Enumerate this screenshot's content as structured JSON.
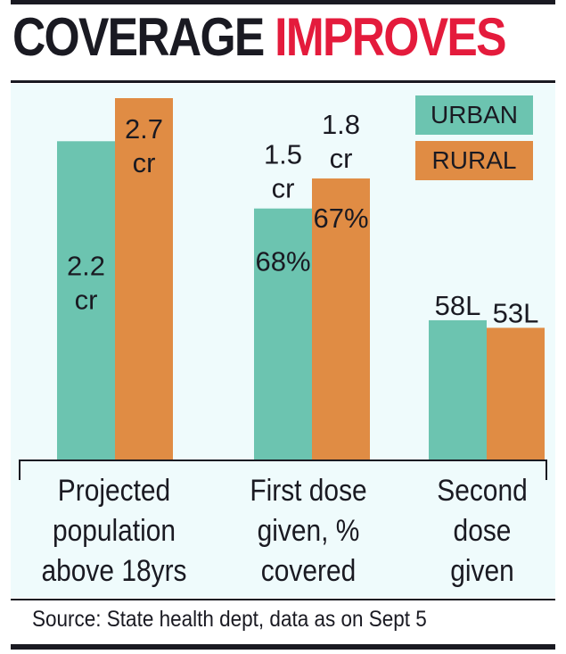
{
  "title": {
    "part1": "COVERAGE",
    "part2": "IMPROVES"
  },
  "legend": {
    "urban": "URBAN",
    "rural": "RURAL"
  },
  "source": "Source: State health dept, data as on Sept 5",
  "colors": {
    "urban": "#6cc4b0",
    "rural": "#e08c44",
    "title_accent": "#e41b3c",
    "background": "#effbfc"
  },
  "chart_data": {
    "type": "bar",
    "title": "COVERAGE IMPROVES",
    "categories": [
      "Projected population above 18yrs",
      "First dose given, % covered",
      "Second dose given"
    ],
    "series": [
      {
        "name": "URBAN",
        "values_crore": [
          2.2,
          1.5,
          0.58
        ],
        "labels": [
          "2.2 cr",
          "1.5 cr",
          "58L"
        ],
        "percent_labels": [
          null,
          "68%",
          null
        ]
      },
      {
        "name": "RURAL",
        "values_crore": [
          2.7,
          1.8,
          0.53
        ],
        "labels": [
          "2.7 cr",
          "1.8 cr",
          "53L"
        ],
        "percent_labels": [
          null,
          "67%",
          null
        ]
      }
    ],
    "category_lines": [
      [
        "Projected",
        "population",
        "above 18yrs"
      ],
      [
        "First dose",
        "given, %",
        "covered"
      ],
      [
        "Second",
        "dose",
        "given"
      ]
    ],
    "ylim": [
      0,
      2.8
    ],
    "legend_position": "top-right",
    "grid": false
  }
}
